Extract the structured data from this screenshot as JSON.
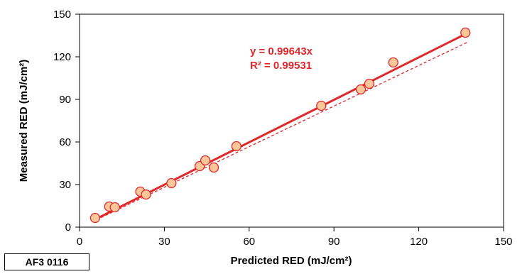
{
  "chart_data": {
    "type": "scatter",
    "xlabel": "Predicted RED (mJ/cm²)",
    "ylabel": "Measured RED (mJ/cm²)",
    "xlim": [
      0,
      150
    ],
    "ylim": [
      0,
      150
    ],
    "xticks": [
      0,
      30,
      60,
      90,
      120,
      150
    ],
    "yticks": [
      0,
      30,
      60,
      90,
      120,
      150
    ],
    "grid": false,
    "points": [
      {
        "x": 5.5,
        "y": 6.5
      },
      {
        "x": 10.5,
        "y": 14.5
      },
      {
        "x": 12.5,
        "y": 14.0
      },
      {
        "x": 21.5,
        "y": 25.0
      },
      {
        "x": 23.5,
        "y": 23.0
      },
      {
        "x": 32.5,
        "y": 31.0
      },
      {
        "x": 42.5,
        "y": 43.0
      },
      {
        "x": 44.5,
        "y": 47.0
      },
      {
        "x": 47.5,
        "y": 42.0
      },
      {
        "x": 55.5,
        "y": 57.0
      },
      {
        "x": 85.5,
        "y": 85.5
      },
      {
        "x": 99.5,
        "y": 97.0
      },
      {
        "x": 102.5,
        "y": 101.0
      },
      {
        "x": 111.0,
        "y": 116.0
      },
      {
        "x": 136.5,
        "y": 137.0
      }
    ],
    "fit_line": {
      "slope": 0.99643,
      "x_range": [
        5,
        137
      ],
      "color": "#e0272a"
    },
    "reference_line": {
      "slope": 0.953,
      "intercept": -0.5,
      "x_range": [
        6,
        137
      ],
      "color": "#e0272a",
      "dashed": true
    },
    "annotations": [
      "y = 0.99643x",
      "R² = 0.99531"
    ],
    "marker_fill": "#f9c79a",
    "marker_stroke": "#e0272a"
  },
  "corner_label": "AF3 0116"
}
